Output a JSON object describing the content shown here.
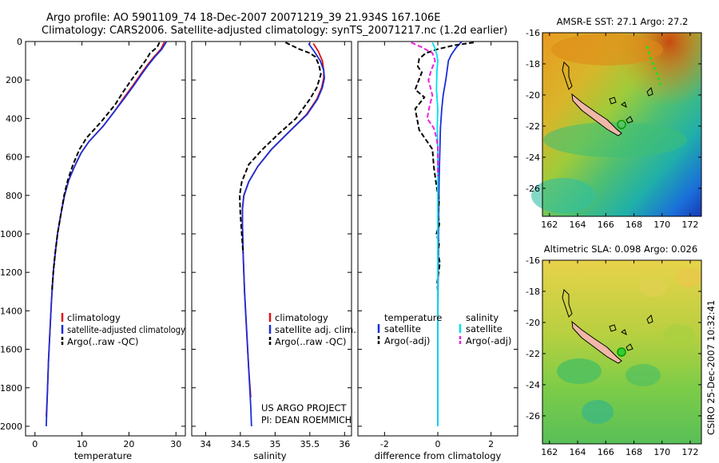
{
  "header": {
    "line1": "Argo profile: AO 5901109_74 18-Dec-2007 20071219_39 21.934S 167.106E",
    "line2": "Climatology: CARS2006. Satellite-adjusted climatology: synTS_20071217.nc (1.2d earlier)"
  },
  "colors": {
    "climatology": "#e01010",
    "satellite": "#1a2ed8",
    "argo": "#000000",
    "sat_diff": "#00e0f0",
    "argo_adj_sal": "#ee22dd"
  },
  "chart_data": [
    {
      "type": "line",
      "id": "temperature",
      "xlabel": "temperature",
      "xlim": [
        -2,
        32
      ],
      "ylim": [
        2050,
        0
      ],
      "xticks": [
        "0",
        "10",
        "20",
        "30"
      ],
      "yticks": [
        "0",
        "200",
        "400",
        "600",
        "800",
        "1000",
        "1200",
        "1400",
        "1600",
        "1800",
        "2000"
      ],
      "legend": [
        "climatology",
        "satellite-adjusted climatology",
        "Argo(..raw -QC)"
      ],
      "series": [
        {
          "name": "climatology",
          "style": "solid",
          "color": "climatology",
          "points": [
            [
              27.6,
              0
            ],
            [
              26.8,
              40
            ],
            [
              25.3,
              80
            ],
            [
              24.0,
              120
            ],
            [
              22.5,
              170
            ],
            [
              20.8,
              230
            ],
            [
              19.0,
              290
            ],
            [
              17.0,
              360
            ],
            [
              14.5,
              440
            ],
            [
              11.5,
              520
            ],
            [
              9.8,
              580
            ],
            [
              8.4,
              650
            ],
            [
              7.2,
              720
            ],
            [
              6.3,
              800
            ],
            [
              5.5,
              900
            ],
            [
              4.8,
              1000
            ],
            [
              4.3,
              1100
            ],
            [
              3.9,
              1200
            ],
            [
              3.5,
              1350
            ],
            [
              3.2,
              1500
            ],
            [
              2.9,
              1650
            ],
            [
              2.6,
              1850
            ],
            [
              2.4,
              1950
            ]
          ]
        },
        {
          "name": "satellite",
          "style": "solid",
          "color": "satellite",
          "points": [
            [
              28.0,
              0
            ],
            [
              27.0,
              40
            ],
            [
              25.5,
              80
            ],
            [
              24.2,
              120
            ],
            [
              22.7,
              170
            ],
            [
              21.0,
              230
            ],
            [
              19.2,
              290
            ],
            [
              17.0,
              360
            ],
            [
              14.5,
              440
            ],
            [
              11.5,
              520
            ],
            [
              9.8,
              580
            ],
            [
              8.4,
              650
            ],
            [
              7.2,
              720
            ],
            [
              6.3,
              800
            ],
            [
              5.5,
              900
            ],
            [
              4.8,
              1000
            ],
            [
              4.3,
              1100
            ],
            [
              3.9,
              1200
            ],
            [
              3.5,
              1350
            ],
            [
              3.2,
              1500
            ],
            [
              2.9,
              1650
            ],
            [
              2.6,
              1850
            ],
            [
              2.4,
              2000
            ]
          ]
        },
        {
          "name": "argo",
          "style": "dashed",
          "color": "argo",
          "points": [
            [
              26.5,
              5
            ],
            [
              26.0,
              30
            ],
            [
              24.5,
              60
            ],
            [
              23.5,
              100
            ],
            [
              22.0,
              150
            ],
            [
              20.5,
              200
            ],
            [
              18.8,
              260
            ],
            [
              17.0,
              330
            ],
            [
              14.0,
              420
            ],
            [
              11.0,
              500
            ],
            [
              9.5,
              560
            ],
            [
              8.1,
              640
            ],
            [
              7.0,
              720
            ],
            [
              6.2,
              800
            ],
            [
              5.5,
              900
            ],
            [
              4.8,
              1000
            ],
            [
              4.3,
              1100
            ],
            [
              3.9,
              1200
            ],
            [
              3.6,
              1300
            ]
          ]
        }
      ]
    },
    {
      "type": "line",
      "id": "salinity",
      "xlabel": "salinity",
      "xlim": [
        33.8,
        36.1
      ],
      "ylim": [
        2050,
        0
      ],
      "xticks": [
        "34",
        "34.5",
        "35",
        "35.5",
        "36"
      ],
      "legend": [
        "climatology",
        "satellite adj. clim.",
        "Argo(..raw -QC)"
      ],
      "series": [
        {
          "name": "climatology",
          "style": "solid",
          "color": "climatology",
          "points": [
            [
              35.55,
              10
            ],
            [
              35.62,
              50
            ],
            [
              35.68,
              100
            ],
            [
              35.7,
              150
            ],
            [
              35.7,
              190
            ],
            [
              35.67,
              240
            ],
            [
              35.6,
              300
            ],
            [
              35.45,
              380
            ],
            [
              35.2,
              470
            ],
            [
              34.95,
              560
            ],
            [
              34.75,
              650
            ],
            [
              34.62,
              730
            ],
            [
              34.55,
              800
            ],
            [
              34.53,
              870
            ],
            [
              34.53,
              950
            ],
            [
              34.54,
              1100
            ],
            [
              34.56,
              1300
            ],
            [
              34.59,
              1500
            ],
            [
              34.62,
              1700
            ],
            [
              34.65,
              1850
            ]
          ]
        },
        {
          "name": "satellite",
          "style": "solid",
          "color": "satellite",
          "points": [
            [
              35.48,
              10
            ],
            [
              35.56,
              50
            ],
            [
              35.65,
              100
            ],
            [
              35.7,
              150
            ],
            [
              35.71,
              190
            ],
            [
              35.68,
              240
            ],
            [
              35.61,
              300
            ],
            [
              35.46,
              380
            ],
            [
              35.2,
              470
            ],
            [
              34.95,
              560
            ],
            [
              34.75,
              650
            ],
            [
              34.62,
              730
            ],
            [
              34.55,
              800
            ],
            [
              34.53,
              870
            ],
            [
              34.53,
              950
            ],
            [
              34.54,
              1100
            ],
            [
              34.56,
              1300
            ],
            [
              34.59,
              1500
            ],
            [
              34.62,
              1700
            ],
            [
              34.65,
              1900
            ],
            [
              34.66,
              2000
            ]
          ]
        },
        {
          "name": "argo",
          "style": "dashed",
          "color": "argo",
          "points": [
            [
              35.15,
              5
            ],
            [
              35.35,
              40
            ],
            [
              35.5,
              60
            ],
            [
              35.58,
              80
            ],
            [
              35.63,
              120
            ],
            [
              35.66,
              170
            ],
            [
              35.6,
              240
            ],
            [
              35.5,
              300
            ],
            [
              35.3,
              400
            ],
            [
              35.05,
              480
            ],
            [
              34.82,
              560
            ],
            [
              34.62,
              640
            ],
            [
              34.52,
              730
            ],
            [
              34.49,
              800
            ],
            [
              34.5,
              900
            ],
            [
              34.52,
              1000
            ],
            [
              34.54,
              1100
            ]
          ]
        }
      ]
    },
    {
      "type": "line",
      "id": "difference",
      "xlabel": "difference from climatology",
      "xlim": [
        -3,
        3
      ],
      "ylim": [
        2050,
        0
      ],
      "xticks": [
        "-2",
        "0",
        "2"
      ],
      "legend_left_title": "temperature",
      "legend_left": [
        "satellite",
        "Argo(-adj)"
      ],
      "legend_right_title": "salinity",
      "legend_right": [
        "satellite",
        "Argo(-adj)"
      ],
      "series": [
        {
          "name": "temperature satellite",
          "style": "solid",
          "color": "satellite",
          "points": [
            [
              0.9,
              0
            ],
            [
              0.7,
              30
            ],
            [
              0.6,
              50
            ],
            [
              0.5,
              70
            ],
            [
              0.4,
              100
            ],
            [
              0.35,
              150
            ],
            [
              0.3,
              200
            ],
            [
              0.2,
              280
            ],
            [
              0.15,
              350
            ],
            [
              0.1,
              450
            ],
            [
              0.08,
              550
            ],
            [
              0.05,
              700
            ],
            [
              0.03,
              900
            ],
            [
              0.02,
              1100
            ],
            [
              0.01,
              1300
            ],
            [
              0.0,
              1500
            ],
            [
              0.0,
              1800
            ],
            [
              0.0,
              2000
            ]
          ]
        },
        {
          "name": "temperature argo",
          "style": "dashed",
          "color": "argo",
          "points": [
            [
              1.35,
              5
            ],
            [
              0.6,
              20
            ],
            [
              0.0,
              40
            ],
            [
              -0.45,
              60
            ],
            [
              -0.7,
              90
            ],
            [
              -0.75,
              130
            ],
            [
              -0.6,
              160
            ],
            [
              -0.85,
              250
            ],
            [
              -0.5,
              290
            ],
            [
              -0.85,
              350
            ],
            [
              -0.7,
              460
            ],
            [
              -0.2,
              560
            ],
            [
              -0.15,
              650
            ],
            [
              -0.05,
              750
            ],
            [
              0.05,
              830
            ],
            [
              0.0,
              900
            ],
            [
              0.06,
              950
            ],
            [
              -0.05,
              1000
            ],
            [
              0.05,
              1050
            ],
            [
              0.0,
              1100
            ],
            [
              0.08,
              1150
            ],
            [
              -0.02,
              1250
            ],
            [
              0.0,
              1300
            ]
          ]
        },
        {
          "name": "salinity satellite",
          "style": "solid",
          "color": "sat_diff",
          "points": [
            [
              -0.2,
              5
            ],
            [
              -0.12,
              30
            ],
            [
              -0.05,
              60
            ],
            [
              0.0,
              100
            ],
            [
              -0.03,
              150
            ],
            [
              -0.05,
              250
            ],
            [
              0.0,
              350
            ],
            [
              -0.02,
              450
            ],
            [
              0.0,
              550
            ],
            [
              0.0,
              700
            ],
            [
              0.0,
              900
            ],
            [
              0.0,
              1100
            ],
            [
              0.0,
              1400
            ],
            [
              0.0,
              1700
            ],
            [
              0.0,
              2000
            ]
          ]
        },
        {
          "name": "salinity argo",
          "style": "dashed",
          "color": "argo_adj_sal",
          "points": [
            [
              -1.0,
              5
            ],
            [
              -0.6,
              30
            ],
            [
              -0.2,
              60
            ],
            [
              -0.1,
              100
            ],
            [
              -0.25,
              150
            ],
            [
              -0.35,
              200
            ],
            [
              -0.2,
              280
            ],
            [
              -0.3,
              330
            ],
            [
              -0.4,
              400
            ],
            [
              -0.15,
              450
            ],
            [
              -0.05,
              500
            ],
            [
              0.0,
              550
            ],
            [
              0.0,
              700
            ]
          ]
        }
      ]
    }
  ],
  "maps": [
    {
      "title": "AMSR-E SST: 27.1 Argo: 27.2",
      "xticks": [
        "162",
        "164",
        "166",
        "168",
        "170",
        "172"
      ],
      "yticks": [
        "-16",
        "-18",
        "-20",
        "-22",
        "-24",
        "-26"
      ]
    },
    {
      "title": "Altimetric SLA: 0.098 Argo: 0.026",
      "xticks": [
        "162",
        "164",
        "166",
        "168",
        "170",
        "172"
      ],
      "yticks": [
        "-16",
        "-18",
        "-20",
        "-22",
        "-24",
        "-26"
      ]
    }
  ],
  "annotations": {
    "project_line1": "US ARGO PROJECT",
    "project_line2": "PI: DEAN ROEMMICH",
    "stamp": "CSIRO 25-Dec-2007 10:32:41"
  }
}
